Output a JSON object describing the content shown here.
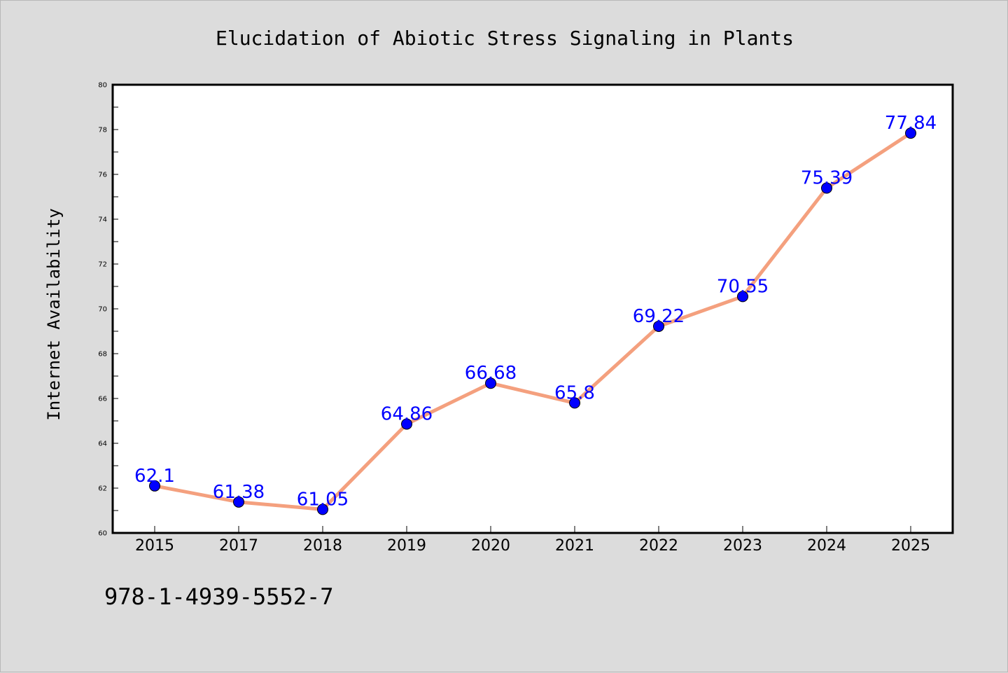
{
  "chart_data": {
    "type": "line",
    "title": "Elucidation of Abiotic Stress Signaling in Plants",
    "xlabel": "",
    "ylabel": "Internet Availability",
    "categories": [
      "2015",
      "2017",
      "2018",
      "2019",
      "2020",
      "2021",
      "2022",
      "2023",
      "2024",
      "2025"
    ],
    "series": [
      {
        "values": [
          62.1,
          61.38,
          61.05,
          64.86,
          66.68,
          65.8,
          69.22,
          70.55,
          75.39,
          77.84
        ],
        "labels": [
          "62.1",
          "61.38",
          "61.05",
          "64.86",
          "66.68",
          "65.8",
          "69.22",
          "70.55",
          "75.39",
          "77.84"
        ],
        "line_color": "#f4a07e",
        "marker_color": "#0000ff",
        "label_color": "#0000ff"
      }
    ],
    "ylim": [
      60,
      80
    ],
    "yticks": [
      60,
      62,
      64,
      66,
      68,
      70,
      72,
      74,
      76,
      78,
      80
    ],
    "grid": false,
    "legend": "none"
  },
  "footnote": "978-1-4939-5552-7",
  "colors": {
    "background": "#dcdcdc",
    "plot_area": "#ffffff",
    "axes": "#000000"
  }
}
